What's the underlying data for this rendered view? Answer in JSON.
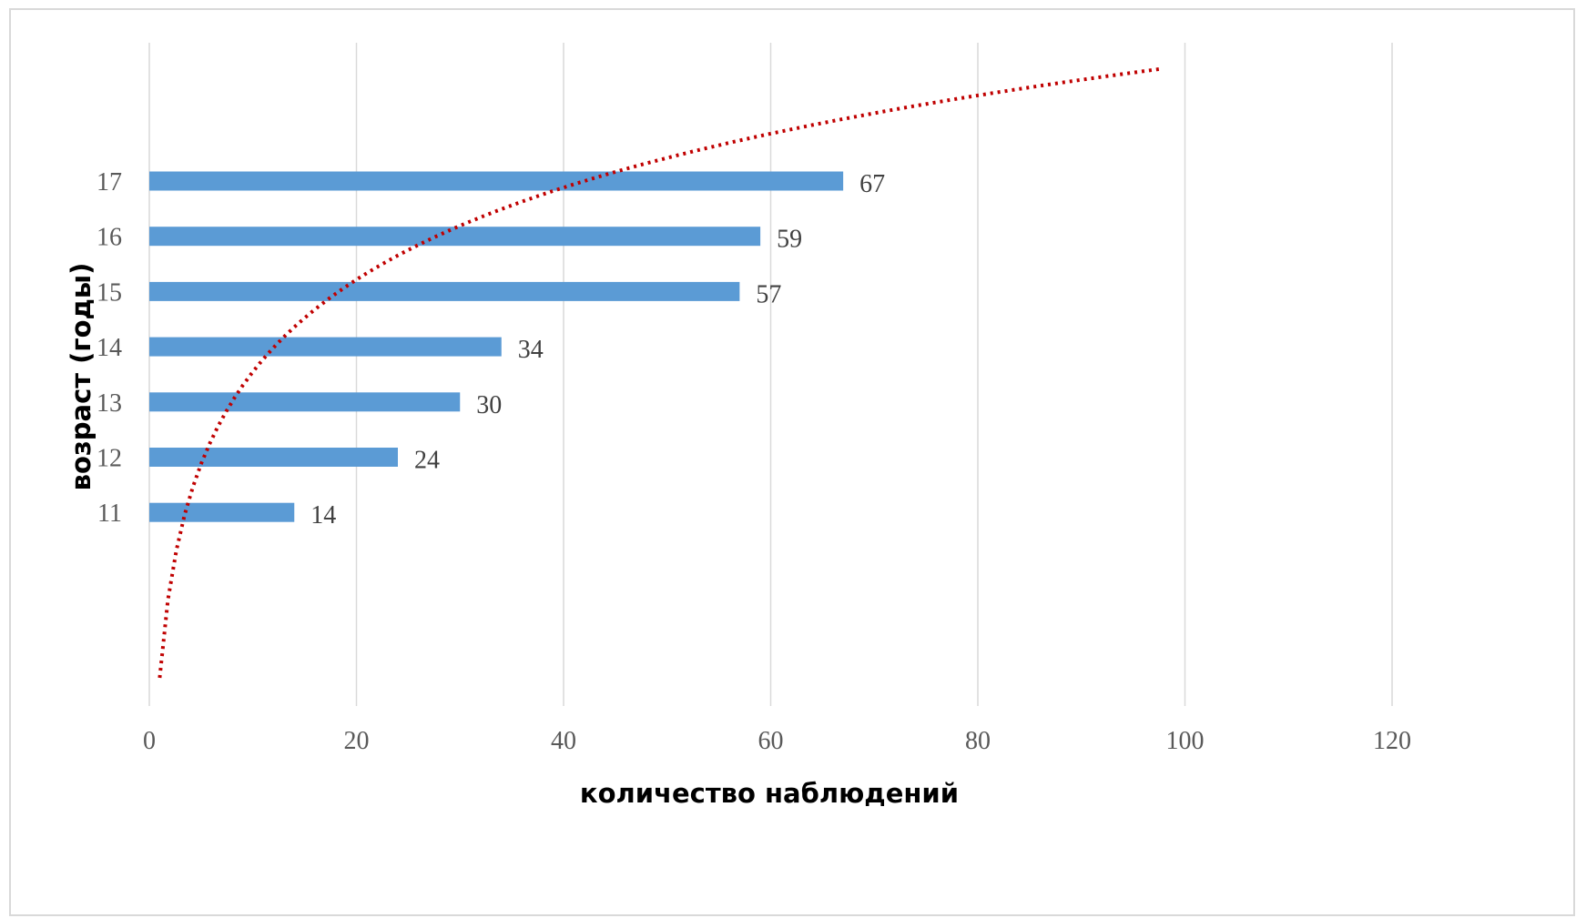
{
  "chart_data": {
    "type": "bar",
    "orientation": "horizontal",
    "categories": [
      "11",
      "12",
      "13",
      "14",
      "15",
      "16",
      "17"
    ],
    "values": [
      14,
      24,
      30,
      34,
      57,
      59,
      67
    ],
    "data_labels": [
      "14",
      "24",
      "30",
      "34",
      "57",
      "59",
      "67"
    ],
    "xlabel": "количество наблюдений",
    "ylabel": "возраст (годы)",
    "xlim": [
      0,
      120
    ],
    "x_ticks": [
      0,
      20,
      40,
      60,
      80,
      100,
      120
    ],
    "x_tick_labels": [
      "0",
      "20",
      "40",
      "60",
      "80",
      "100",
      "120"
    ],
    "grid": "vertical",
    "legend": "none",
    "trendline": {
      "type": "logarithmic",
      "style": "dotted",
      "x_start": 1,
      "x_end": 97.5
    },
    "colors": {
      "bar": "#5b9bd5",
      "trendline": "#c00000",
      "grid": "#d9d9d9",
      "frame": "#d9d9d9"
    }
  }
}
